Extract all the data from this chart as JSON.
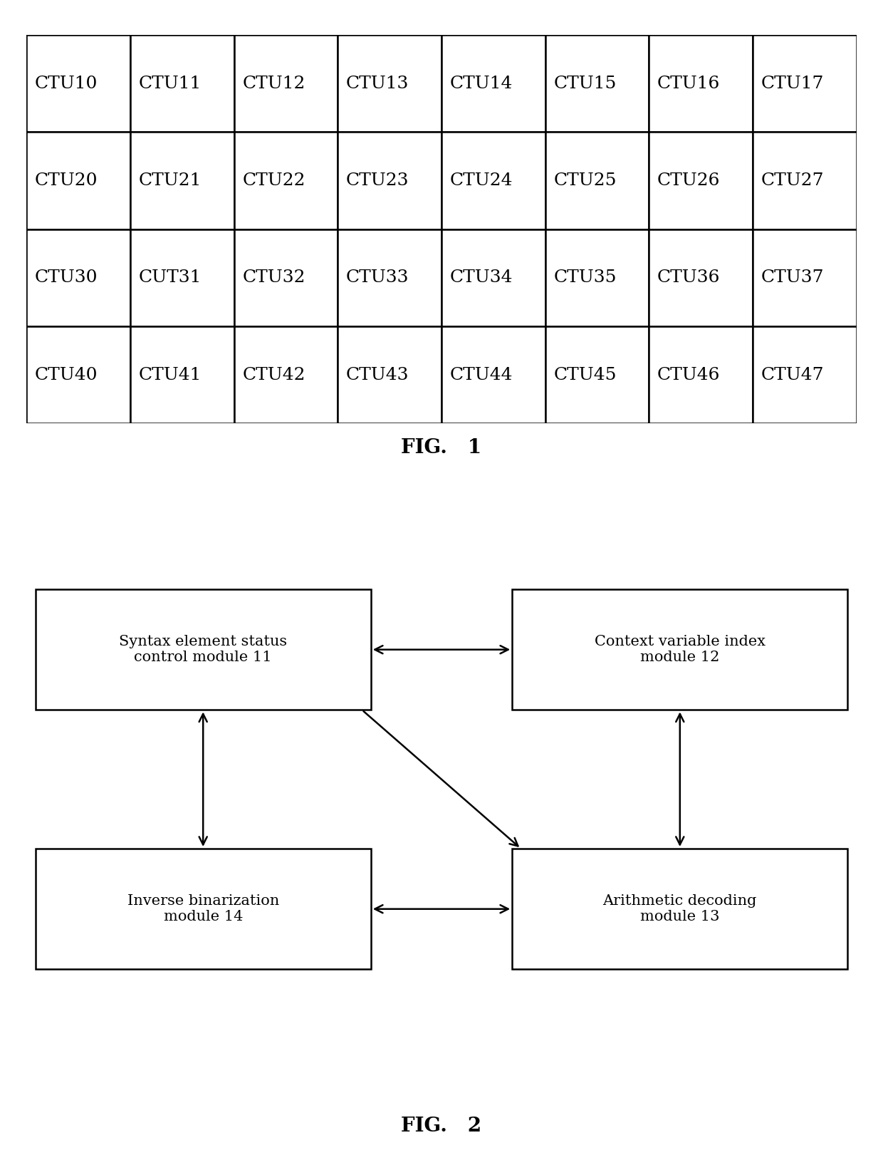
{
  "fig1_cells": [
    [
      "CTU10",
      "CTU11",
      "CTU12",
      "CTU13",
      "CTU14",
      "CTU15",
      "CTU16",
      "CTU17"
    ],
    [
      "CTU20",
      "CTU21",
      "CTU22",
      "CTU23",
      "CTU24",
      "CTU25",
      "CTU26",
      "CTU27"
    ],
    [
      "CTU30",
      "CUT31",
      "CTU32",
      "CTU33",
      "CTU34",
      "CTU35",
      "CTU36",
      "CTU37"
    ],
    [
      "CTU40",
      "CTU41",
      "CTU42",
      "CTU43",
      "CTU44",
      "CTU45",
      "CTU46",
      "CTU47"
    ]
  ],
  "fig1_caption": "FIG.   1",
  "fig2_caption": "FIG.   2",
  "box_labels": {
    "top_left": "Syntax element status\ncontrol module 11",
    "top_right": "Context variable index\nmodule 12",
    "bot_left": "Inverse binarization\nmodule 14",
    "bot_right": "Arithmetic decoding\nmodule 13"
  },
  "background_color": "#ffffff",
  "box_edge_color": "#000000",
  "text_color": "#000000",
  "arrow_color": "#000000",
  "font_size_cell": 18,
  "font_size_caption": 20,
  "font_size_box": 15
}
